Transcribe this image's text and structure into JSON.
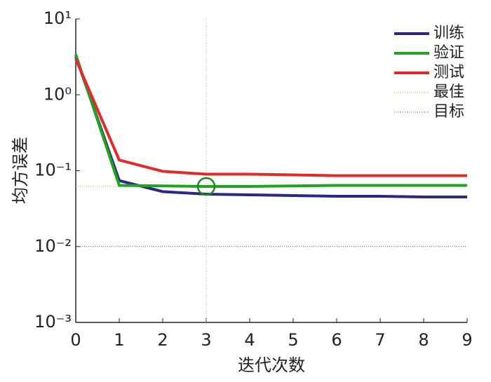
{
  "chart_data": {
    "type": "line",
    "xlabel": "迭代次数",
    "ylabel": "均方误差",
    "x": [
      0,
      1,
      2,
      3,
      4,
      5,
      6,
      7,
      8,
      9
    ],
    "series": [
      {
        "name": "训练",
        "color": "#2b2882",
        "values": [
          3.2,
          0.074,
          0.053,
          0.049,
          0.048,
          0.047,
          0.046,
          0.046,
          0.045,
          0.045
        ]
      },
      {
        "name": "验证",
        "color": "#21a321",
        "values": [
          3.4,
          0.064,
          0.063,
          0.062,
          0.062,
          0.063,
          0.064,
          0.064,
          0.064,
          0.064
        ]
      },
      {
        "name": "测试",
        "color": "#e2292b",
        "values": [
          2.96,
          0.138,
          0.098,
          0.09,
          0.09,
          0.088,
          0.086,
          0.086,
          0.086,
          0.086
        ]
      }
    ],
    "best": {
      "name": "最佳",
      "x": 3,
      "value": 0.062,
      "color": "#a9b43c",
      "marker_color": "#1b8a1b"
    },
    "goal": {
      "name": "目标",
      "value": 0.01,
      "color": "#555555"
    },
    "xlim": [
      0,
      9
    ],
    "xticks": [
      0,
      1,
      2,
      3,
      4,
      5,
      6,
      7,
      8,
      9
    ],
    "ylim": [
      0.001,
      10
    ],
    "log_y": true,
    "yticks": [
      {
        "value": 0.001,
        "label": "10⁻³"
      },
      {
        "value": 0.01,
        "label": "10⁻²"
      },
      {
        "value": 0.1,
        "label": "10⁻¹"
      },
      {
        "value": 1,
        "label": "10⁰"
      },
      {
        "value": 10,
        "label": "10¹"
      }
    ],
    "legend": "upper right"
  }
}
